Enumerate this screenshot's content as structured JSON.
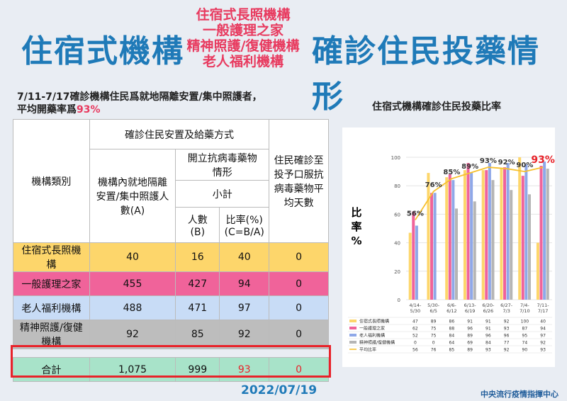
{
  "title_left": "住宿式機構",
  "title_right": "確診住民投藥情形",
  "categories_stack": [
    "住宿式長照機構",
    "一般護理之家",
    "精神照護/復健機構",
    "老人福利機構"
  ],
  "subtitle_line1": "7/11-7/17確診機構住民爲就地隔離安置/集中照護者，",
  "subtitle_line2_prefix": "平均開藥率爲",
  "subtitle_line2_value": "93%",
  "table": {
    "col_type": "機構類別",
    "group_header": "確診住民安置及給藥方式",
    "col_a": "機構內就地隔離安置/集中照護人數(A)",
    "group_antiviral": "開立抗病毒藥物情形",
    "subtotal": "小計",
    "col_b": "人數(B)",
    "col_c": "比率(%)(C=B/A)",
    "col_days": "住民確診至投予口服抗病毒藥物平均天數",
    "rows": [
      {
        "name": "住宿式長照機構",
        "a": "40",
        "b": "16",
        "c": "40",
        "d": "0"
      },
      {
        "name": "一般護理之家",
        "a": "455",
        "b": "427",
        "c": "94",
        "d": "0"
      },
      {
        "name": "老人福利機構",
        "a": "488",
        "b": "471",
        "c": "97",
        "d": "0"
      },
      {
        "name": "精神照護/復健機構",
        "a": "92",
        "b": "85",
        "c": "92",
        "d": "0"
      }
    ],
    "total": {
      "name": "合計",
      "a": "1,075",
      "b": "999",
      "c": "93",
      "d": "0"
    }
  },
  "date": "2022/07/19",
  "credit": "中央流行疫情指揮中心",
  "chart_data": {
    "type": "bar",
    "title": "住宿式機構確診住民投藥比率",
    "ylabel": "比率%",
    "ylim": [
      0,
      100
    ],
    "yticks": [
      0,
      20,
      40,
      60,
      80,
      100
    ],
    "categories": [
      "4/14-5/30",
      "5/30-6/5",
      "6/6-6/12",
      "6/13-6/19",
      "6/20-6/26",
      "6/27-7/3",
      "7/4-7/10",
      "7/11-7/17"
    ],
    "series": [
      {
        "name": "住宿式長照機構",
        "color": "#fdd66b",
        "values": [
          47,
          89,
          86,
          91,
          91,
          92,
          100,
          40
        ]
      },
      {
        "name": "一般護理之家",
        "color": "#f0639a",
        "values": [
          62,
          75,
          88,
          96,
          91,
          93,
          87,
          94
        ]
      },
      {
        "name": "老人福利機構",
        "color": "#8fa8e8",
        "values": [
          52,
          75,
          84,
          89,
          96,
          96,
          95,
          97
        ]
      },
      {
        "name": "精神照護/復健機構",
        "color": "#b5b5b5",
        "values": [
          0,
          0,
          64,
          69,
          84,
          77,
          74,
          92
        ]
      }
    ],
    "line": {
      "name": "平均比率",
      "color": "#f6c02e",
      "values": [
        56,
        76,
        85,
        89,
        93,
        92,
        90,
        93
      ]
    },
    "line_labels": [
      "56%",
      "76%",
      "85%",
      "89%",
      "93%",
      "92%",
      "90%",
      "93%"
    ],
    "table_series_names": [
      "住宿式長照機構",
      "一般護理之家",
      "老人福利機構",
      "精神照護/復健機構",
      "平均比率"
    ]
  }
}
